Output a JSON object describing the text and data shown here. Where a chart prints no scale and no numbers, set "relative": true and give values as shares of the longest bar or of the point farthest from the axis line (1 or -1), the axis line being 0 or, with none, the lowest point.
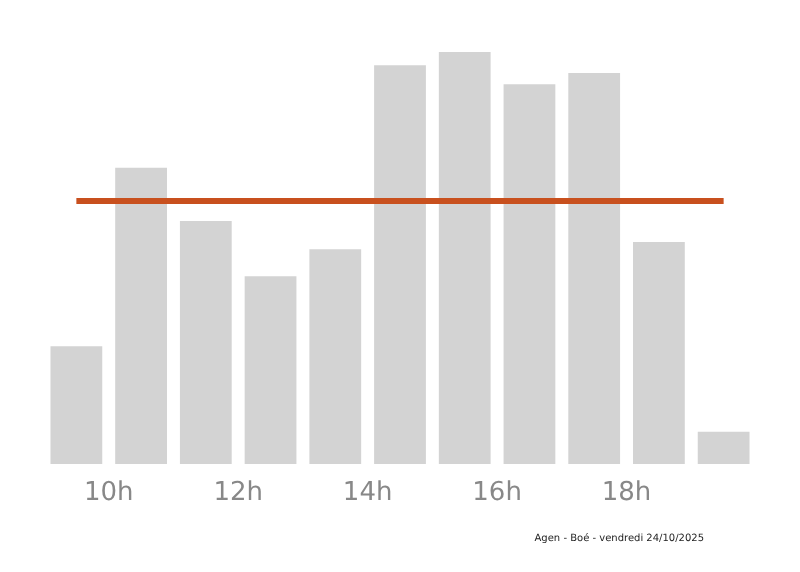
{
  "chart_data": {
    "type": "bar",
    "relative": true,
    "x": [
      9.5,
      10.5,
      11.5,
      12.5,
      13.5,
      14.5,
      15.5,
      16.5,
      17.5,
      18.5,
      19.5
    ],
    "values": [
      0.286,
      0.719,
      0.59,
      0.456,
      0.521,
      0.968,
      1,
      0.922,
      0.949,
      0.539,
      0.078
    ],
    "color": "#d3d3d3",
    "xlim": [
      9,
      20
    ],
    "xticks": [
      {
        "value": 10,
        "label": "10h"
      },
      {
        "value": 12,
        "label": "12h"
      },
      {
        "value": 14,
        "label": "14h"
      },
      {
        "value": 16,
        "label": "16h"
      },
      {
        "value": 18,
        "label": "18h"
      }
    ],
    "ref_lines": [
      {
        "axis": "y",
        "value": 0.641,
        "color": "#c8501e"
      }
    ],
    "annotations": [
      "Agen - Boé - vendredi 24/10/2025"
    ],
    "grid": false
  }
}
